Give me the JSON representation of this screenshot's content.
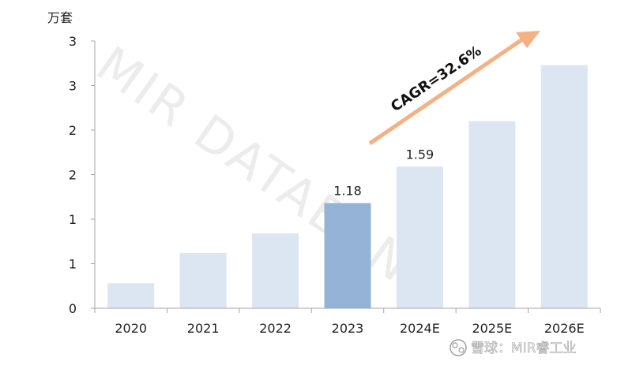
{
  "chart_data": {
    "type": "bar",
    "unit_label": "万套",
    "categories": [
      "2020",
      "2021",
      "2022",
      "2023",
      "2024E",
      "2025E",
      "2026E"
    ],
    "values": [
      0.28,
      0.62,
      0.84,
      1.18,
      1.59,
      2.1,
      2.73
    ],
    "data_labels": [
      "",
      "",
      "",
      "1.18",
      "1.59",
      "",
      ""
    ],
    "highlight_index": 3,
    "y_tick_labels": [
      "0",
      "1",
      "1",
      "2",
      "2",
      "3",
      "3"
    ],
    "ylim": [
      0,
      3
    ],
    "grid": false,
    "legend": "none",
    "colors": {
      "bar": "#dce6f2",
      "highlight": "#95b3d7",
      "arrow": "#f4b183",
      "axis": "#a6a6a6"
    },
    "annotation": "CAGR=32.6%"
  },
  "watermark": "MIR DATABANK",
  "footer": {
    "icon": "snowball-logo-icon",
    "text": "雪球：MIR睿工业"
  }
}
